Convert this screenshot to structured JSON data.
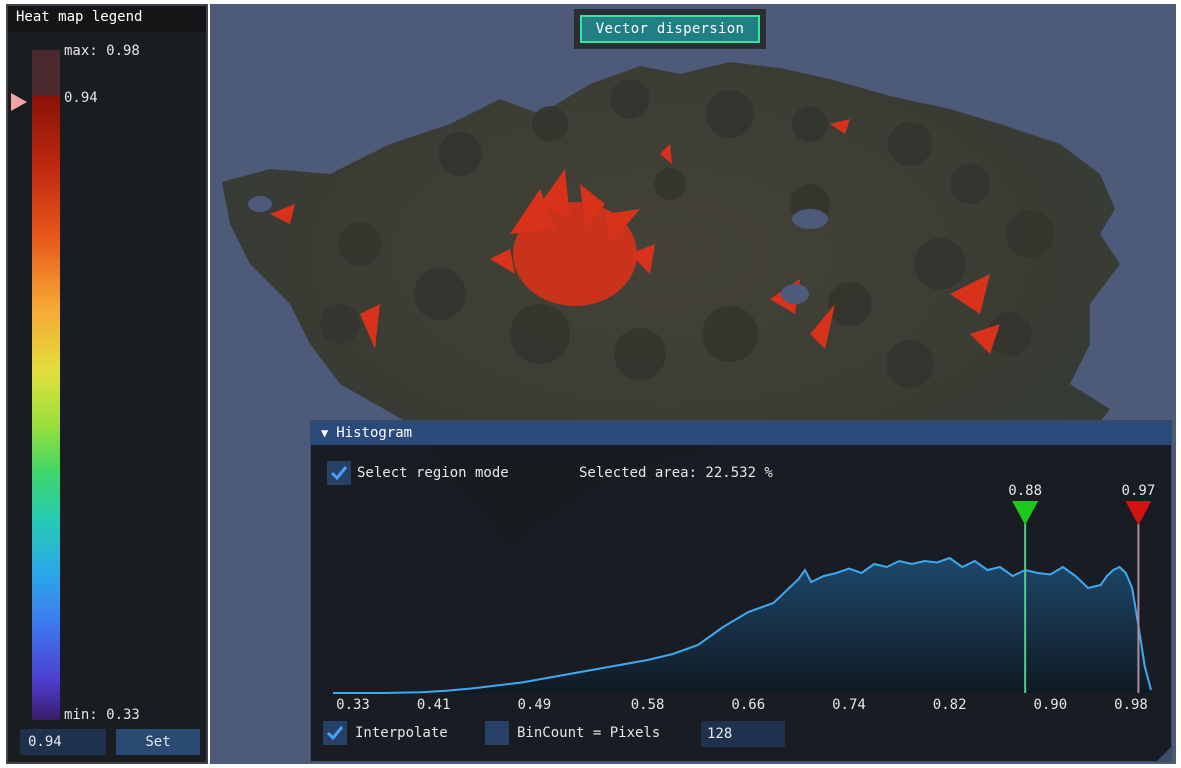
{
  "viewport": {
    "title": "Vector dispersion",
    "colors": {
      "background": "#4e5a7a",
      "terrain": "#3b3c35",
      "highlight": "#d8321a",
      "title_border": "#38e6a0"
    }
  },
  "legend": {
    "title": "Heat map legend",
    "max_label": "max: 0.98",
    "current_label": "0.94",
    "min_label": "min: 0.33",
    "input_value": "0.94",
    "set_label": "Set",
    "marker_icon": "triangle-right-icon",
    "marker_value": 0.94,
    "range": [
      0.33,
      0.98
    ]
  },
  "histogram": {
    "title": "Histogram",
    "collapse_icon": "triangle-down-icon",
    "select_region_label": "Select region mode",
    "select_region_checked": true,
    "selected_area_text": "Selected area: 22.532 %",
    "interpolate_label": "Interpolate",
    "interpolate_checked": true,
    "bincount_label": "BinCount = Pixels",
    "bincount_checked": false,
    "bincount_value": "128",
    "threshold_low": {
      "label": "0.88",
      "value": 0.88,
      "color": "#1ec81e"
    },
    "threshold_high": {
      "label": "0.97",
      "value": 0.97,
      "color": "#d41212"
    },
    "line_color": "#3fa9f0"
  },
  "chart_data": {
    "type": "area",
    "xlim": [
      0.33,
      0.98
    ],
    "ylim": [
      0,
      1
    ],
    "tick_labels": [
      "0.33",
      "0.41",
      "0.49",
      "0.58",
      "0.66",
      "0.74",
      "0.82",
      "0.90",
      "0.98"
    ],
    "tick_values": [
      0.33,
      0.41,
      0.49,
      0.58,
      0.66,
      0.74,
      0.82,
      0.9,
      0.98
    ],
    "x": [
      0.33,
      0.37,
      0.4,
      0.42,
      0.44,
      0.46,
      0.48,
      0.5,
      0.52,
      0.54,
      0.56,
      0.58,
      0.6,
      0.62,
      0.63,
      0.64,
      0.65,
      0.66,
      0.67,
      0.68,
      0.69,
      0.7,
      0.705,
      0.71,
      0.72,
      0.73,
      0.74,
      0.75,
      0.76,
      0.77,
      0.78,
      0.79,
      0.8,
      0.81,
      0.82,
      0.83,
      0.84,
      0.85,
      0.86,
      0.87,
      0.88,
      0.89,
      0.9,
      0.91,
      0.92,
      0.93,
      0.94,
      0.945,
      0.95,
      0.955,
      0.96,
      0.965,
      0.97,
      0.975,
      0.98
    ],
    "y": [
      0.0,
      0.0,
      0.005,
      0.015,
      0.03,
      0.05,
      0.07,
      0.1,
      0.13,
      0.16,
      0.19,
      0.22,
      0.26,
      0.32,
      0.38,
      0.44,
      0.49,
      0.54,
      0.57,
      0.6,
      0.68,
      0.76,
      0.82,
      0.74,
      0.78,
      0.8,
      0.83,
      0.8,
      0.86,
      0.84,
      0.88,
      0.86,
      0.88,
      0.87,
      0.9,
      0.84,
      0.88,
      0.82,
      0.84,
      0.78,
      0.82,
      0.8,
      0.79,
      0.84,
      0.78,
      0.7,
      0.72,
      0.78,
      0.82,
      0.84,
      0.8,
      0.7,
      0.45,
      0.18,
      0.02
    ]
  }
}
